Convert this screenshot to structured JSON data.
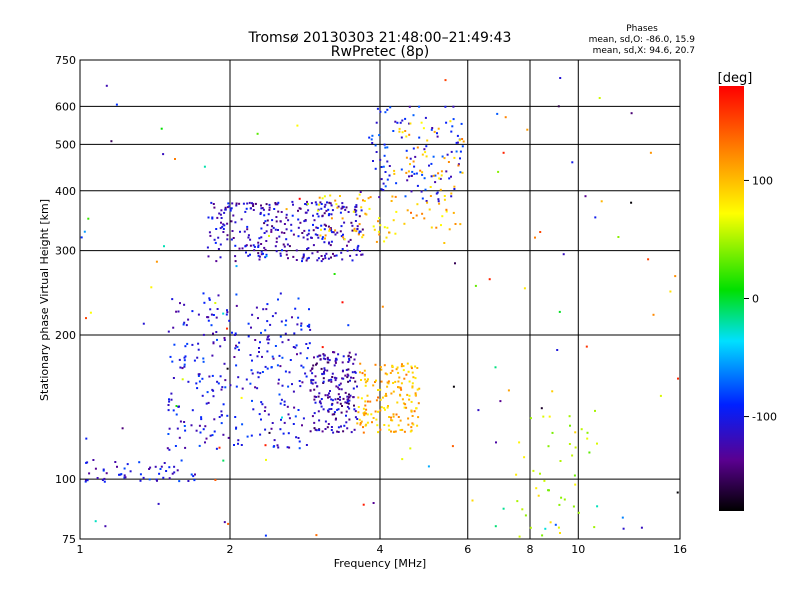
{
  "chart_data": {
    "type": "scatter",
    "title": "Tromsø 20130303 21:48:00–21:49:43",
    "subtitle": "RwPretec (8p)",
    "xlabel": "Frequency [MHz]",
    "ylabel": "Stationary phase Virtual Height [km]",
    "x_scale": "log",
    "y_scale": "log",
    "xlim": [
      1,
      16
    ],
    "ylim": [
      75,
      750
    ],
    "x_ticks": [
      1,
      2,
      4,
      6,
      8,
      10,
      16
    ],
    "y_ticks": [
      75,
      100,
      200,
      300,
      400,
      500,
      600,
      750
    ],
    "grid": true,
    "colorbar": {
      "label": "[deg]",
      "range": [
        -180,
        180
      ],
      "ticks": [
        100,
        0,
        -100
      ],
      "colormap": "rainbow"
    },
    "phase_stats": {
      "title": "Phases",
      "line_o": "mean, sd,O: -86.0, 15.9",
      "line_x": "mean, sd,X:  94.6, 20.7"
    },
    "clusters": [
      {
        "f": [
          1.5,
          2.9
        ],
        "h": [
          115,
          245
        ],
        "phase": -105,
        "n": 300
      },
      {
        "f": [
          2.9,
          3.6
        ],
        "h": [
          125,
          185
        ],
        "phase": -125,
        "n": 200
      },
      {
        "f": [
          3.6,
          4.8
        ],
        "h": [
          125,
          175
        ],
        "phase": 105,
        "n": 170
      },
      {
        "f": [
          1.8,
          3.7
        ],
        "h": [
          285,
          380
        ],
        "phase": -118,
        "n": 330
      },
      {
        "f": [
          3.0,
          4.3
        ],
        "h": [
          310,
          395
        ],
        "phase": 95,
        "n": 55
      },
      {
        "f": [
          3.8,
          5.9
        ],
        "h": [
          380,
          600
        ],
        "phase": -100,
        "n": 110
      },
      {
        "f": [
          4.2,
          5.9
        ],
        "h": [
          330,
          560
        ],
        "phase": 100,
        "n": 70
      },
      {
        "f": [
          1.0,
          1.75
        ],
        "h": [
          98,
          110
        ],
        "phase": -105,
        "n": 55
      },
      {
        "f": [
          1.0,
          16.0
        ],
        "h": [
          75,
          700
        ],
        "phase": 0,
        "n": 120
      },
      {
        "f": [
          7.5,
          11.0
        ],
        "h": [
          75,
          140
        ],
        "phase": 60,
        "n": 45
      }
    ]
  }
}
